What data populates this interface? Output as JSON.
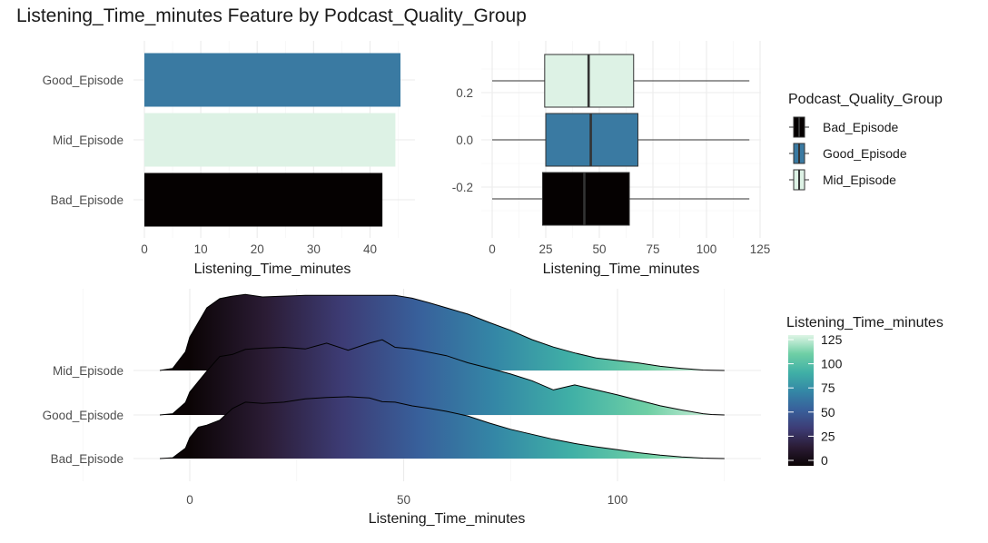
{
  "title": "Listening_Time_minutes Feature by Podcast_Quality_Group",
  "groups": [
    "Bad_Episode",
    "Good_Episode",
    "Mid_Episode"
  ],
  "group_colors": {
    "Bad_Episode": "#050101",
    "Good_Episode": "#3a7aa2",
    "Mid_Episode": "#ddf2e5"
  },
  "chart_data": [
    {
      "type": "bar",
      "orientation": "horizontal",
      "categories": [
        "Bad_Episode",
        "Mid_Episode",
        "Good_Episode"
      ],
      "values": [
        42.2,
        44.5,
        45.4
      ],
      "xlabel": "Listening_Time_minutes",
      "ylabel": "",
      "xlim": [
        0,
        47
      ],
      "xticks": [
        0,
        10,
        20,
        30,
        40
      ],
      "grid": true
    },
    {
      "type": "box",
      "orientation": "horizontal",
      "xlabel": "Listening_Time_minutes",
      "ylabel": "",
      "xlim": [
        0,
        125
      ],
      "ylim": [
        -0.4,
        0.4
      ],
      "xticks": [
        0,
        25,
        50,
        75,
        100,
        125
      ],
      "yticks": [
        -0.2,
        0.0,
        0.2
      ],
      "ytick_labels": [
        "-0.2",
        "0.0",
        "0.2"
      ],
      "grid": true,
      "boxes": [
        {
          "group": "Bad_Episode",
          "y": -0.25,
          "min": 0,
          "q1": 23.5,
          "median": 43,
          "q3": 64,
          "max": 120
        },
        {
          "group": "Good_Episode",
          "y": 0.0,
          "min": 0,
          "q1": 25,
          "median": 46,
          "q3": 68,
          "max": 120
        },
        {
          "group": "Mid_Episode",
          "y": 0.25,
          "min": 0,
          "q1": 24.5,
          "median": 45,
          "q3": 66,
          "max": 120
        }
      ],
      "legend": {
        "title": "Podcast_Quality_Group",
        "entries": [
          "Bad_Episode",
          "Good_Episode",
          "Mid_Episode"
        ],
        "position": "right"
      }
    },
    {
      "type": "ridgeline",
      "xlabel": "Listening_Time_minutes",
      "ylabel": "",
      "xlim": [
        -12,
        128
      ],
      "xticks": [
        0,
        50,
        100
      ],
      "categories": [
        "Bad_Episode",
        "Good_Episode",
        "Mid_Episode"
      ],
      "grid": true,
      "ridges": [
        {
          "group": "Bad_Episode",
          "x": [
            -7,
            -4,
            -1,
            0,
            2,
            4,
            7,
            10,
            13,
            17,
            22,
            27,
            32,
            37,
            42,
            45,
            48,
            52,
            56,
            60,
            65,
            70,
            75,
            80,
            85,
            90,
            95,
            100,
            105,
            110,
            115,
            120,
            122,
            125
          ],
          "density": [
            0,
            0.02,
            0.25,
            0.5,
            0.75,
            0.8,
            0.92,
            1.2,
            1.35,
            1.32,
            1.35,
            1.43,
            1.46,
            1.48,
            1.45,
            1.36,
            1.35,
            1.26,
            1.2,
            1.13,
            1.02,
            0.85,
            0.7,
            0.58,
            0.46,
            0.36,
            0.28,
            0.21,
            0.14,
            0.08,
            0.04,
            0.01,
            0.005,
            0
          ]
        },
        {
          "group": "Good_Episode",
          "x": [
            -7,
            -4,
            -1,
            0,
            2,
            4,
            7,
            10,
            13,
            17,
            22,
            27,
            32,
            37,
            42,
            45,
            48,
            52,
            56,
            60,
            65,
            70,
            75,
            80,
            85,
            90,
            95,
            100,
            105,
            110,
            115,
            120,
            122,
            125
          ],
          "density": [
            0,
            0.03,
            0.3,
            0.55,
            0.8,
            1.05,
            1.4,
            1.45,
            1.57,
            1.6,
            1.62,
            1.58,
            1.72,
            1.55,
            1.72,
            1.8,
            1.62,
            1.58,
            1.5,
            1.42,
            1.25,
            1.12,
            0.98,
            0.82,
            0.6,
            0.72,
            0.6,
            0.48,
            0.35,
            0.22,
            0.12,
            0.03,
            0.01,
            0
          ]
        },
        {
          "group": "Mid_Episode",
          "x": [
            -7,
            -4,
            -1,
            0,
            2,
            4,
            7,
            10,
            13,
            17,
            22,
            27,
            32,
            37,
            42,
            45,
            48,
            52,
            56,
            60,
            65,
            70,
            75,
            80,
            85,
            90,
            95,
            100,
            105,
            110,
            115,
            120,
            122,
            125
          ],
          "density": [
            0,
            0.05,
            0.45,
            0.8,
            1.15,
            1.5,
            1.72,
            1.78,
            1.82,
            1.76,
            1.78,
            1.8,
            1.8,
            1.8,
            1.8,
            1.8,
            1.8,
            1.73,
            1.62,
            1.5,
            1.35,
            1.15,
            0.96,
            0.74,
            0.56,
            0.42,
            0.3,
            0.24,
            0.18,
            0.1,
            0.05,
            0.01,
            0.005,
            0
          ]
        }
      ],
      "colorbar": {
        "title": "Listening_Time_minutes",
        "ticks": [
          0,
          25,
          50,
          75,
          100,
          125
        ],
        "range": [
          0,
          125
        ],
        "position": "right"
      }
    }
  ]
}
